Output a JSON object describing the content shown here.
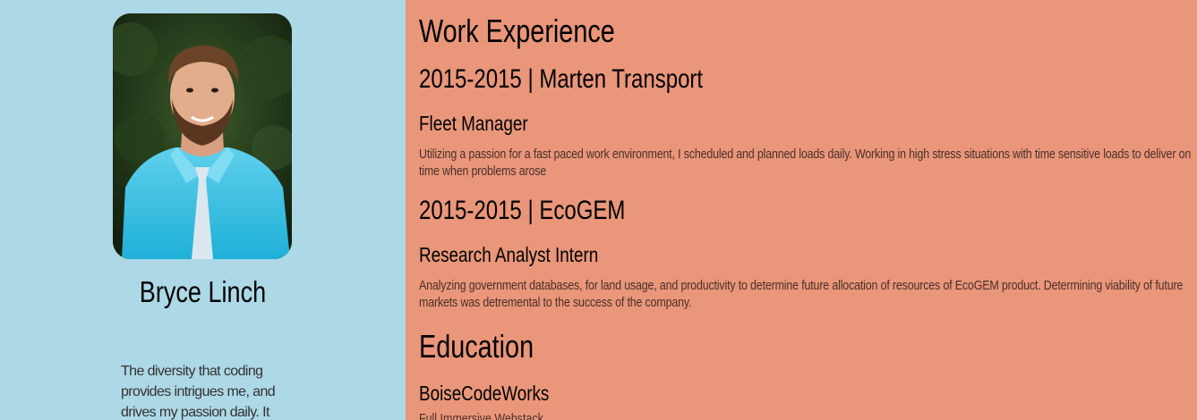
{
  "sidebar": {
    "name": "Bryce Linch",
    "bio": "The diversity that coding provides intrigues me, and drives my passion daily. It"
  },
  "main": {
    "work_heading": "Work Experience",
    "jobs": [
      {
        "title": "2015-2015 | Marten Transport",
        "role": "Fleet Manager",
        "description": "Utilizing a passion for a fast paced work environment, I scheduled and planned loads daily. Working in high stress situations with time sensitive loads to deliver on time when problems arose"
      },
      {
        "title": "2015-2015 | EcoGEM",
        "role": "Research Analyst Intern",
        "description": "Analyzing government databases, for land usage, and productivity to determine future allocation of resources of EcoGEM product. Determining viability of future markets was detremental to the success of the company."
      }
    ],
    "education_heading": "Education",
    "education": [
      {
        "school": "BoiseCodeWorks",
        "program": "Full Immersive Webstack"
      }
    ]
  },
  "colors": {
    "sidebar_bg": "#add8e6",
    "main_bg": "#e9967a"
  }
}
